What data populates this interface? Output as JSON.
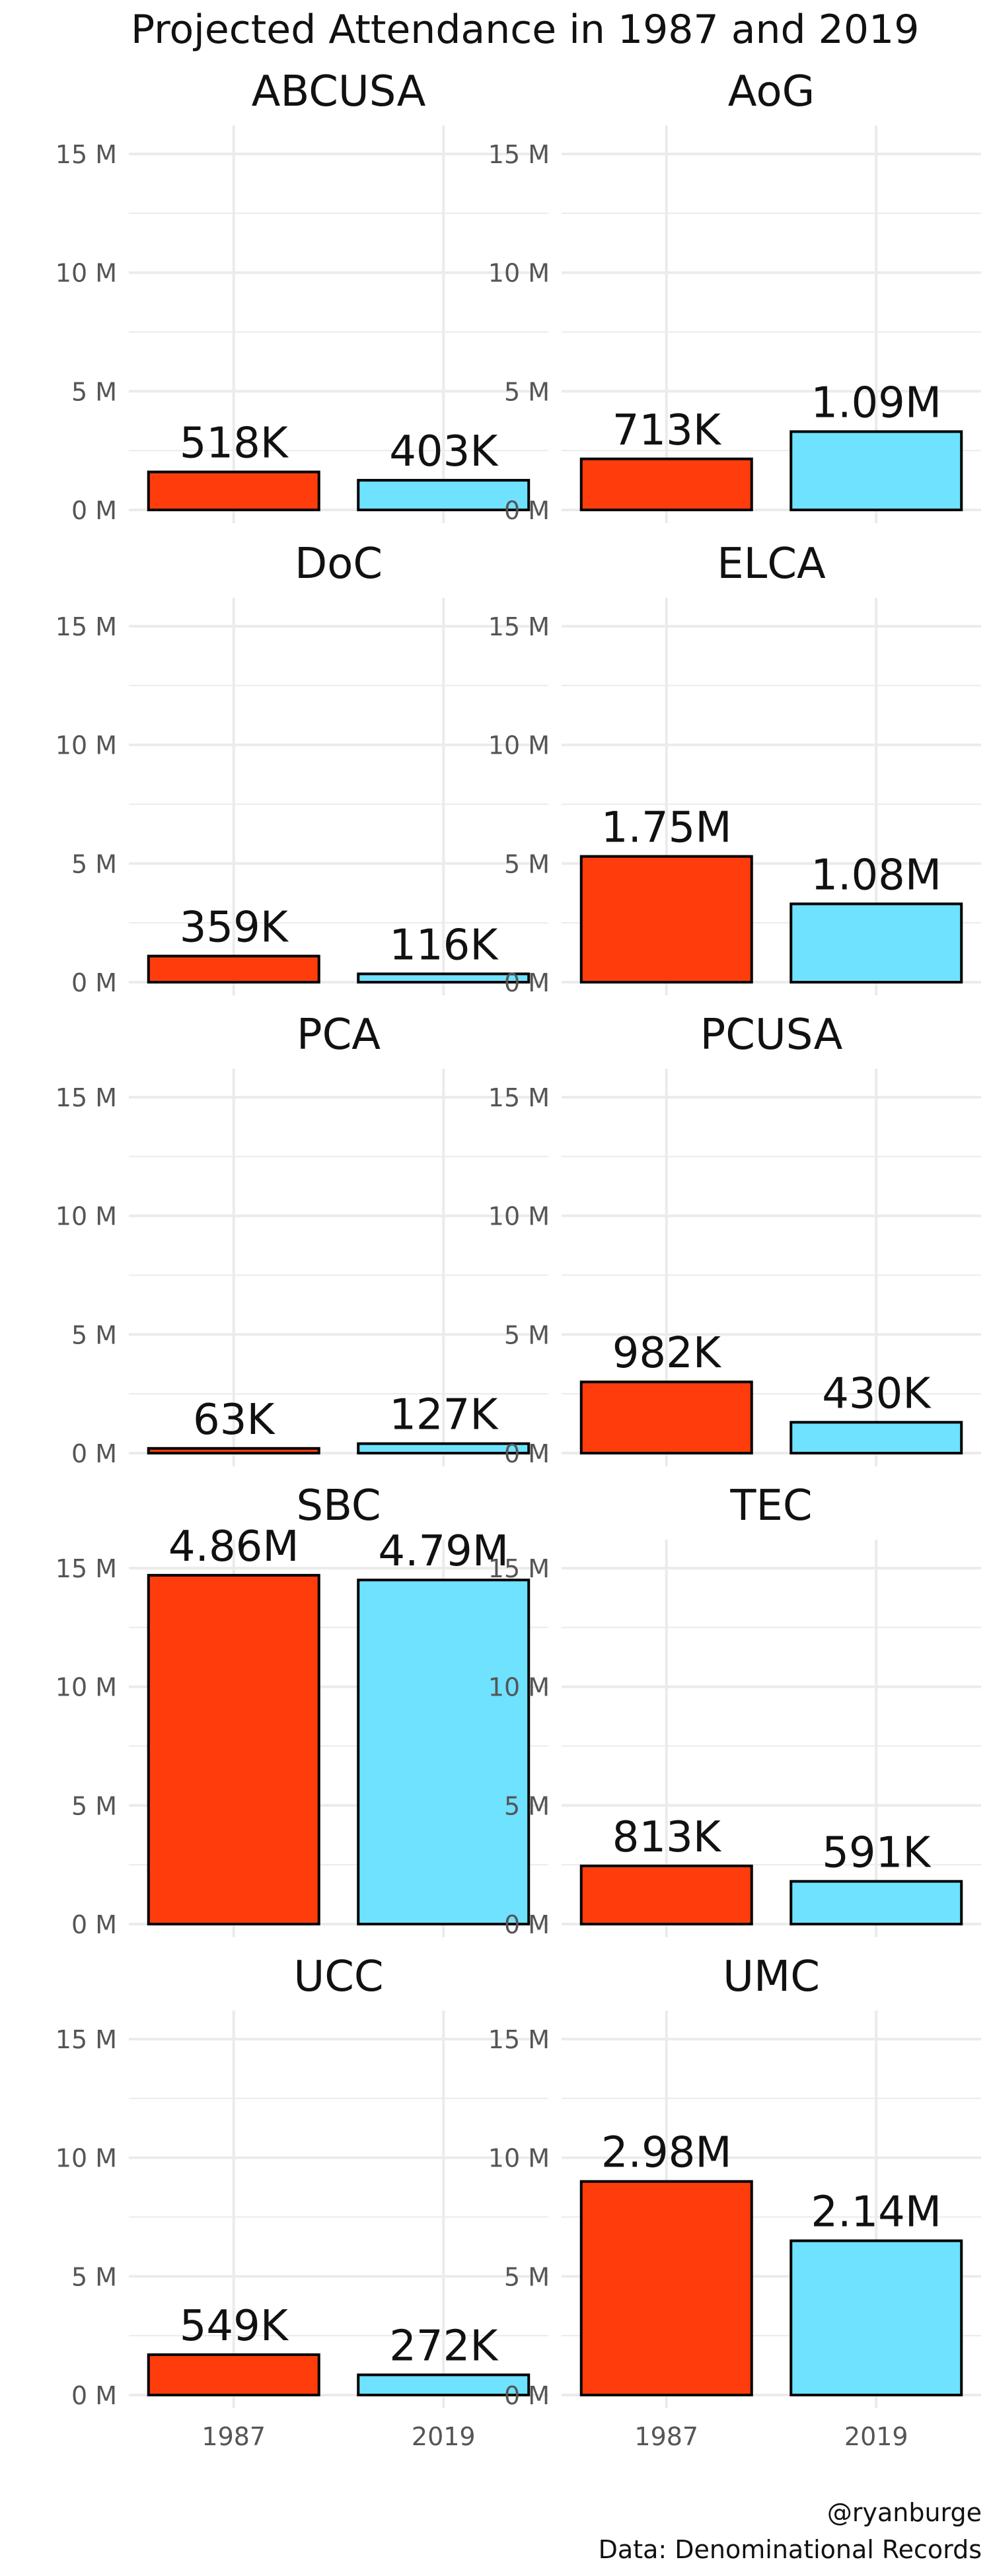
{
  "chart_data": {
    "type": "bar",
    "title": "Projected Attendance in 1987 and 2019",
    "xlabel": "",
    "ylabel": "",
    "categories": [
      "1987",
      "2019"
    ],
    "ylim": [
      0,
      16.2
    ],
    "yticks": [
      0,
      5,
      10,
      15
    ],
    "ytick_labels": [
      "0 M",
      "5 M",
      "10 M",
      "15 M"
    ],
    "grid": true,
    "legend": "none",
    "colors": {
      "1987": "#FF3D0C",
      "2019": "#6EE2FF",
      "outline": "#000000",
      "grid": "#EBEBEB"
    },
    "panels": [
      {
        "name": "ABCUSA",
        "values": [
          1.6,
          1.25
        ],
        "labels": [
          "518K",
          "403K"
        ]
      },
      {
        "name": "AoG",
        "values": [
          2.15,
          3.3
        ],
        "labels": [
          "713K",
          "1.09M"
        ]
      },
      {
        "name": "DoC",
        "values": [
          1.1,
          0.35
        ],
        "labels": [
          "359K",
          "116K"
        ]
      },
      {
        "name": "ELCA",
        "values": [
          5.3,
          3.3
        ],
        "labels": [
          "1.75M",
          "1.08M"
        ]
      },
      {
        "name": "PCA",
        "values": [
          0.2,
          0.4
        ],
        "labels": [
          "63K",
          "127K"
        ]
      },
      {
        "name": "PCUSA",
        "values": [
          3.0,
          1.3
        ],
        "labels": [
          "982K",
          "430K"
        ]
      },
      {
        "name": "SBC",
        "values": [
          14.7,
          14.5
        ],
        "labels": [
          "4.86M",
          "4.79M"
        ]
      },
      {
        "name": "TEC",
        "values": [
          2.45,
          1.8
        ],
        "labels": [
          "813K",
          "591K"
        ]
      },
      {
        "name": "UCC",
        "values": [
          1.7,
          0.85
        ],
        "labels": [
          "549K",
          "272K"
        ]
      },
      {
        "name": "UMC",
        "values": [
          9.0,
          6.5
        ],
        "labels": [
          "2.98M",
          "2.14M"
        ]
      }
    ]
  },
  "captions": {
    "line1": "@ryanburge",
    "line2": "Data: Denominational Records"
  }
}
